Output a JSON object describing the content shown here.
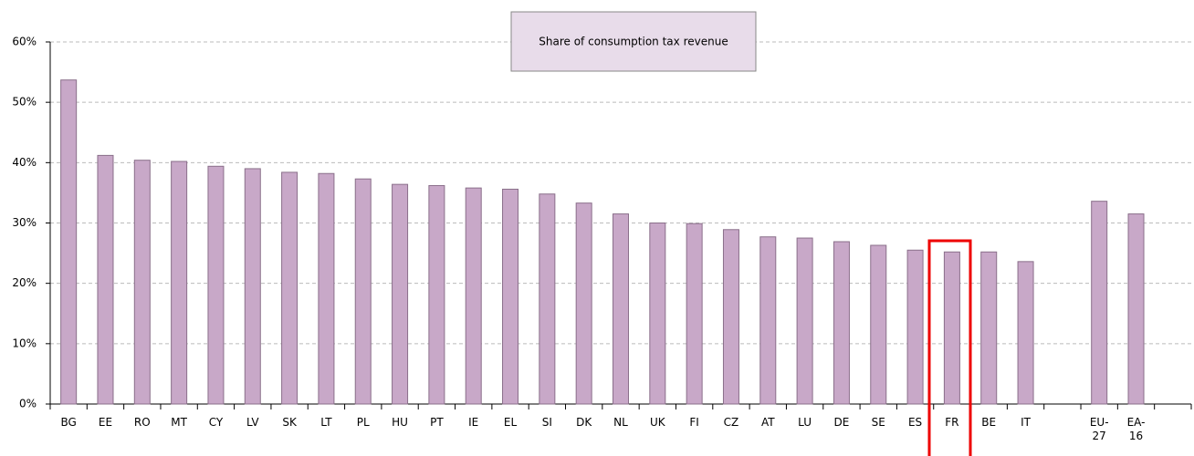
{
  "chart_data": {
    "type": "bar",
    "categories": [
      "BG",
      "EE",
      "RO",
      "MT",
      "CY",
      "LV",
      "SK",
      "LT",
      "PL",
      "HU",
      "PT",
      "IE",
      "EL",
      "SI",
      "DK",
      "NL",
      "UK",
      "FI",
      "CZ",
      "AT",
      "LU",
      "DE",
      "SE",
      "ES",
      "FR",
      "BE",
      "IT",
      null,
      "EU-27",
      "EA-16",
      null
    ],
    "series": [
      {
        "name": "Share of consumption tax revenue",
        "color": "#c8a8c8",
        "values": [
          53.7,
          41.2,
          40.4,
          40.2,
          39.4,
          39.0,
          38.4,
          38.2,
          37.3,
          36.4,
          36.2,
          35.8,
          35.6,
          34.8,
          33.3,
          31.5,
          30.0,
          29.9,
          28.9,
          27.7,
          27.5,
          26.9,
          26.3,
          25.5,
          25.2,
          25.2,
          23.6,
          null,
          33.6,
          31.5,
          null
        ]
      }
    ],
    "ylim": [
      0,
      60
    ],
    "yticks": [
      {
        "value": 0,
        "label": "0%"
      },
      {
        "value": 10,
        "label": "10%"
      },
      {
        "value": 20,
        "label": "20%"
      },
      {
        "value": 30,
        "label": "30%"
      },
      {
        "value": 40,
        "label": "40%"
      },
      {
        "value": 50,
        "label": "50%"
      },
      {
        "value": 60,
        "label": "60%"
      }
    ],
    "grid": true,
    "legend": "top"
  }
}
